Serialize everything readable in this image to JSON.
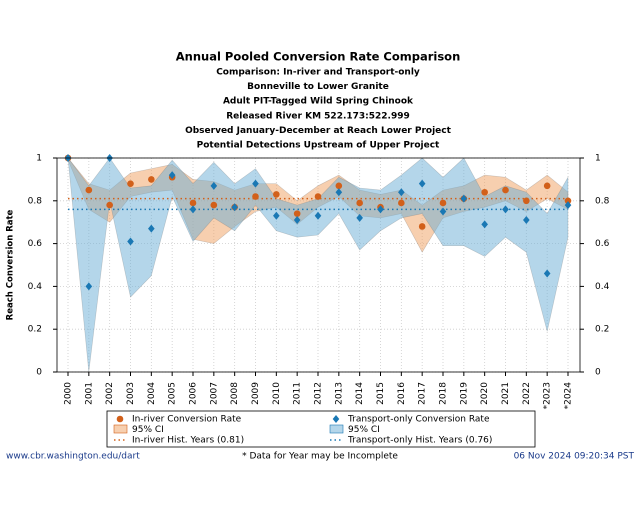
{
  "chart_data": {
    "type": "line",
    "title": "Annual Pooled Conversion Rate Comparison",
    "subtitles": [
      "Comparison: In-river and Transport-only",
      "Bonneville to Lower Granite",
      "Adult PIT-Tagged Wild Spring Chinook",
      "Released River KM 522.173:522.999",
      "Observed January-December at Reach Lower Project",
      "Potential Detections Upstream of Upper Project"
    ],
    "y_label": "Reach Conversion Rate",
    "categories": [
      "2000",
      "2001",
      "2002",
      "2003",
      "2004",
      "2005",
      "2006",
      "2007",
      "2008",
      "2009",
      "2010",
      "2011",
      "2012",
      "2013",
      "2014",
      "2015",
      "2016",
      "2017",
      "2018",
      "2019",
      "2020",
      "2021",
      "2022",
      "*2023",
      "*2024"
    ],
    "ylim": [
      0,
      1
    ],
    "yticks": [
      0,
      0.2,
      0.4,
      0.6,
      0.8,
      1
    ],
    "grid": true,
    "series": [
      {
        "name": "In-river Conversion Rate",
        "color": "#d2601a",
        "band_color": "#f0a060",
        "marker": "circle",
        "values": [
          1.0,
          0.85,
          0.78,
          0.88,
          0.9,
          0.91,
          0.79,
          0.78,
          0.77,
          0.82,
          0.83,
          0.74,
          0.82,
          0.87,
          0.79,
          0.77,
          0.79,
          0.68,
          0.79,
          0.81,
          0.84,
          0.85,
          0.8,
          0.87,
          0.8
        ],
        "ci_lower": [
          0.99,
          0.76,
          0.7,
          0.82,
          0.84,
          0.85,
          0.62,
          0.6,
          0.68,
          0.75,
          0.77,
          0.69,
          0.77,
          0.82,
          0.73,
          0.72,
          0.74,
          0.56,
          0.72,
          0.75,
          0.77,
          0.8,
          0.75,
          0.81,
          0.76
        ],
        "ci_upper": [
          1.0,
          0.88,
          0.85,
          0.93,
          0.95,
          0.97,
          0.9,
          0.89,
          0.85,
          0.88,
          0.88,
          0.8,
          0.87,
          0.92,
          0.85,
          0.83,
          0.85,
          0.78,
          0.85,
          0.87,
          0.92,
          0.91,
          0.85,
          0.92,
          0.84
        ],
        "ci_label": "95% CI",
        "hist_value": 0.81,
        "hist_label": "In-river Hist. Years (0.81)"
      },
      {
        "name": "Transport-only Conversion Rate",
        "color": "#1a78b4",
        "band_color": "#6aaed6",
        "marker": "diamond",
        "values": [
          1.0,
          0.4,
          1.0,
          0.61,
          0.67,
          0.92,
          0.76,
          0.87,
          0.77,
          0.88,
          0.73,
          0.71,
          0.73,
          0.84,
          0.72,
          0.76,
          0.84,
          0.88,
          0.75,
          0.81,
          0.69,
          0.76,
          0.71,
          0.46,
          0.78
        ],
        "ci_lower": [
          1.0,
          0.0,
          0.8,
          0.35,
          0.45,
          0.82,
          0.61,
          0.72,
          0.66,
          0.78,
          0.66,
          0.63,
          0.64,
          0.74,
          0.57,
          0.66,
          0.72,
          0.74,
          0.59,
          0.59,
          0.54,
          0.63,
          0.56,
          0.19,
          0.63
        ],
        "ci_upper": [
          1.0,
          0.87,
          1.0,
          0.86,
          0.87,
          0.99,
          0.88,
          0.98,
          0.88,
          0.95,
          0.81,
          0.78,
          0.81,
          0.91,
          0.86,
          0.85,
          0.92,
          1.0,
          0.91,
          1.0,
          0.82,
          0.87,
          0.84,
          0.74,
          0.91
        ],
        "ci_label": "95% CI",
        "hist_value": 0.76,
        "hist_label": "Transport-only Hist. Years (0.76)"
      }
    ]
  },
  "footer": {
    "left": "www.cbr.washington.edu/dart",
    "center": "* Data for Year may be Incomplete",
    "right": "06 Nov 2024 09:20:34 PST"
  }
}
